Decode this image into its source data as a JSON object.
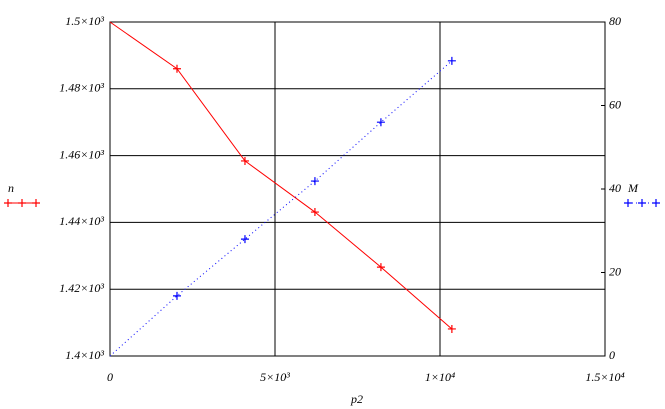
{
  "chart_data": {
    "type": "line",
    "x_label": "p2",
    "x": [
      0,
      2030,
      4090,
      6210,
      8210,
      10360
    ],
    "series": [
      {
        "name": "n",
        "color": "#ff0000",
        "style": "solid",
        "axis": "y",
        "values": [
          1500,
          1486,
          1458.4,
          1443.1,
          1426.6,
          1408.1
        ]
      },
      {
        "name": "M",
        "color": "#0000ff",
        "style": "dotted",
        "axis": "y2",
        "values": [
          0,
          14.4,
          28.0,
          41.9,
          56.0,
          70.7
        ]
      }
    ],
    "xlim": [
      0,
      15000
    ],
    "xticks": [
      0,
      {
        "value": 5000,
        "label": "5×10³"
      },
      {
        "value": 10000,
        "label": "1×10⁴"
      },
      {
        "value": 15000,
        "label": "1.5×10⁴"
      }
    ],
    "ylim": [
      1400,
      1500
    ],
    "yticks": [
      {
        "value": 1400,
        "label": "1.4×10³"
      },
      {
        "value": 1420,
        "label": "1.42×10³"
      },
      {
        "value": 1440,
        "label": "1.44×10³"
      },
      {
        "value": 1460,
        "label": "1.46×10³"
      },
      {
        "value": 1480,
        "label": "1.48×10³"
      },
      {
        "value": 1500,
        "label": "1.5×10³"
      }
    ],
    "y2lim": [
      0,
      80
    ],
    "y2ticks": [
      0,
      20,
      40,
      60,
      80
    ],
    "grid": true
  }
}
